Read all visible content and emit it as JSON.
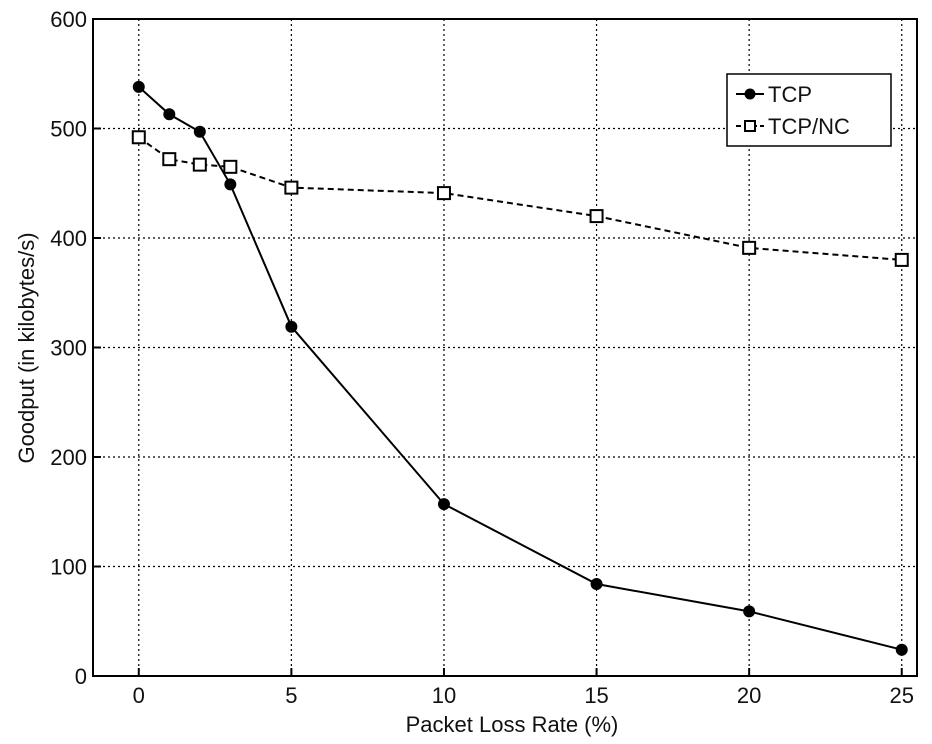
{
  "chart_data": {
    "type": "line",
    "title": "",
    "xlabel": "Packet Loss Rate (%)",
    "ylabel": "Goodput (in kilobytes/s)",
    "xlim": [
      -1.5,
      25.5
    ],
    "ylim": [
      0,
      600
    ],
    "xticks": [
      0,
      5,
      10,
      15,
      20,
      25
    ],
    "yticks": [
      0,
      100,
      200,
      300,
      400,
      500,
      600
    ],
    "xtick_labels": [
      "0",
      "5",
      "10",
      "15",
      "20",
      "25"
    ],
    "ytick_labels": [
      "0",
      "100",
      "200",
      "300",
      "400",
      "500",
      "600"
    ],
    "grid": true,
    "legend_position": "top-right",
    "series": [
      {
        "name": "TCP",
        "marker": "filled-circle",
        "line": "solid",
        "color": "#000000",
        "x": [
          0,
          1,
          2,
          3,
          5,
          10,
          15,
          20,
          25
        ],
        "y": [
          538,
          513,
          497,
          449,
          319,
          157,
          84,
          59,
          24
        ]
      },
      {
        "name": "TCP/NC",
        "marker": "open-square",
        "line": "dashed",
        "color": "#000000",
        "x": [
          0,
          1,
          2,
          3,
          5,
          10,
          15,
          20,
          25
        ],
        "y": [
          492,
          472,
          467,
          465,
          446,
          441,
          420,
          391,
          380
        ]
      }
    ]
  }
}
